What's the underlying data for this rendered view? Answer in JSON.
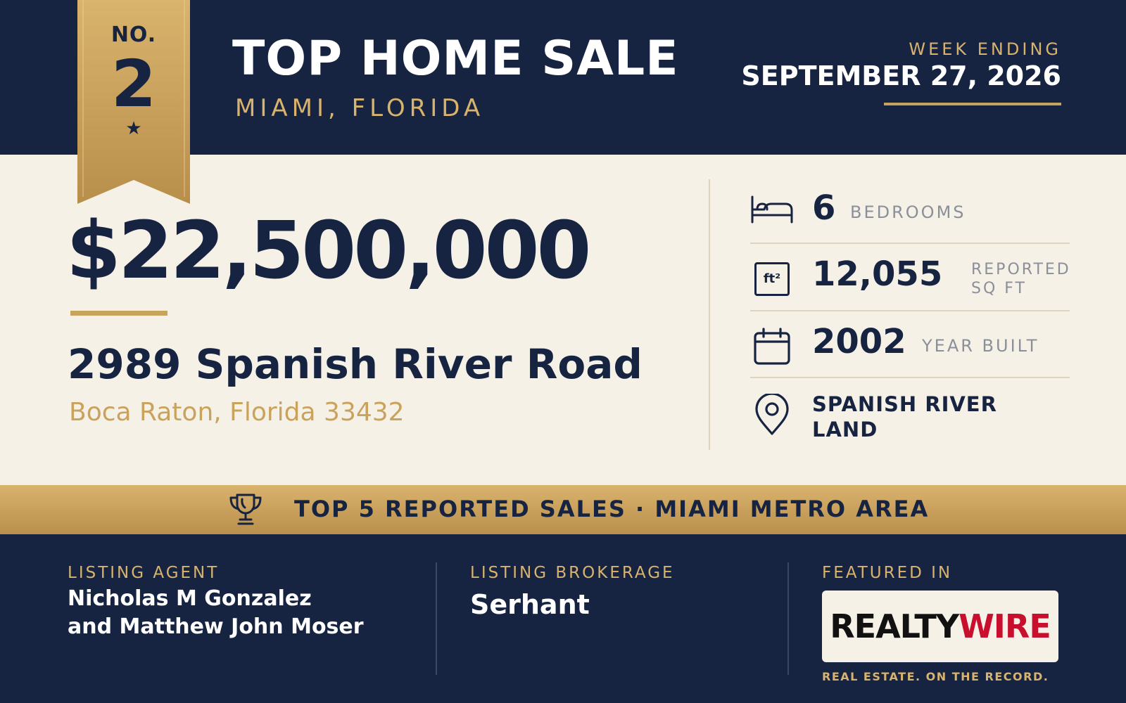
{
  "ribbon": {
    "rank_label": "NO.",
    "rank_number": "2",
    "star": "★"
  },
  "header": {
    "title": "TOP HOME SALE",
    "subtitle": "MIAMI, FLORIDA",
    "week_label": "WEEK ENDING",
    "week_date": "SEPTEMBER 27, 2026"
  },
  "listing": {
    "price": "$22,500,000",
    "address": "2989 Spanish River Road",
    "city": "Boca Raton, Florida 33432"
  },
  "stats": {
    "bedrooms": {
      "icon": "bed-icon",
      "value": "6",
      "label": "BEDROOMS"
    },
    "sqft": {
      "icon": "ft2-icon",
      "icon_text": "ft²",
      "value": "12,055",
      "label_line1": "REPORTED",
      "label_line2": "SQ FT"
    },
    "year": {
      "icon": "calendar-icon",
      "value": "2002",
      "label": "YEAR BUILT"
    },
    "neighborhood": {
      "icon": "location-pin-icon",
      "line1": "SPANISH RIVER",
      "line2": "LAND"
    }
  },
  "banner": {
    "icon": "trophy-icon",
    "text": "TOP 5 REPORTED SALES · MIAMI METRO AREA"
  },
  "footer": {
    "agent_label": "LISTING AGENT",
    "agent_line1": "Nicholas M Gonzalez",
    "agent_line2": "and Matthew John Moser",
    "brokerage_label": "LISTING BROKERAGE",
    "brokerage": "Serhant",
    "featured_label": "FEATURED IN",
    "logo_part1": "REALTY",
    "logo_part2": "WIRE",
    "tagline": "REAL ESTATE. ON THE RECORD."
  },
  "colors": {
    "navy": "#172441",
    "gold": "#c9a25c",
    "cream": "#f6f1e7",
    "logo_red": "#c8102e"
  }
}
